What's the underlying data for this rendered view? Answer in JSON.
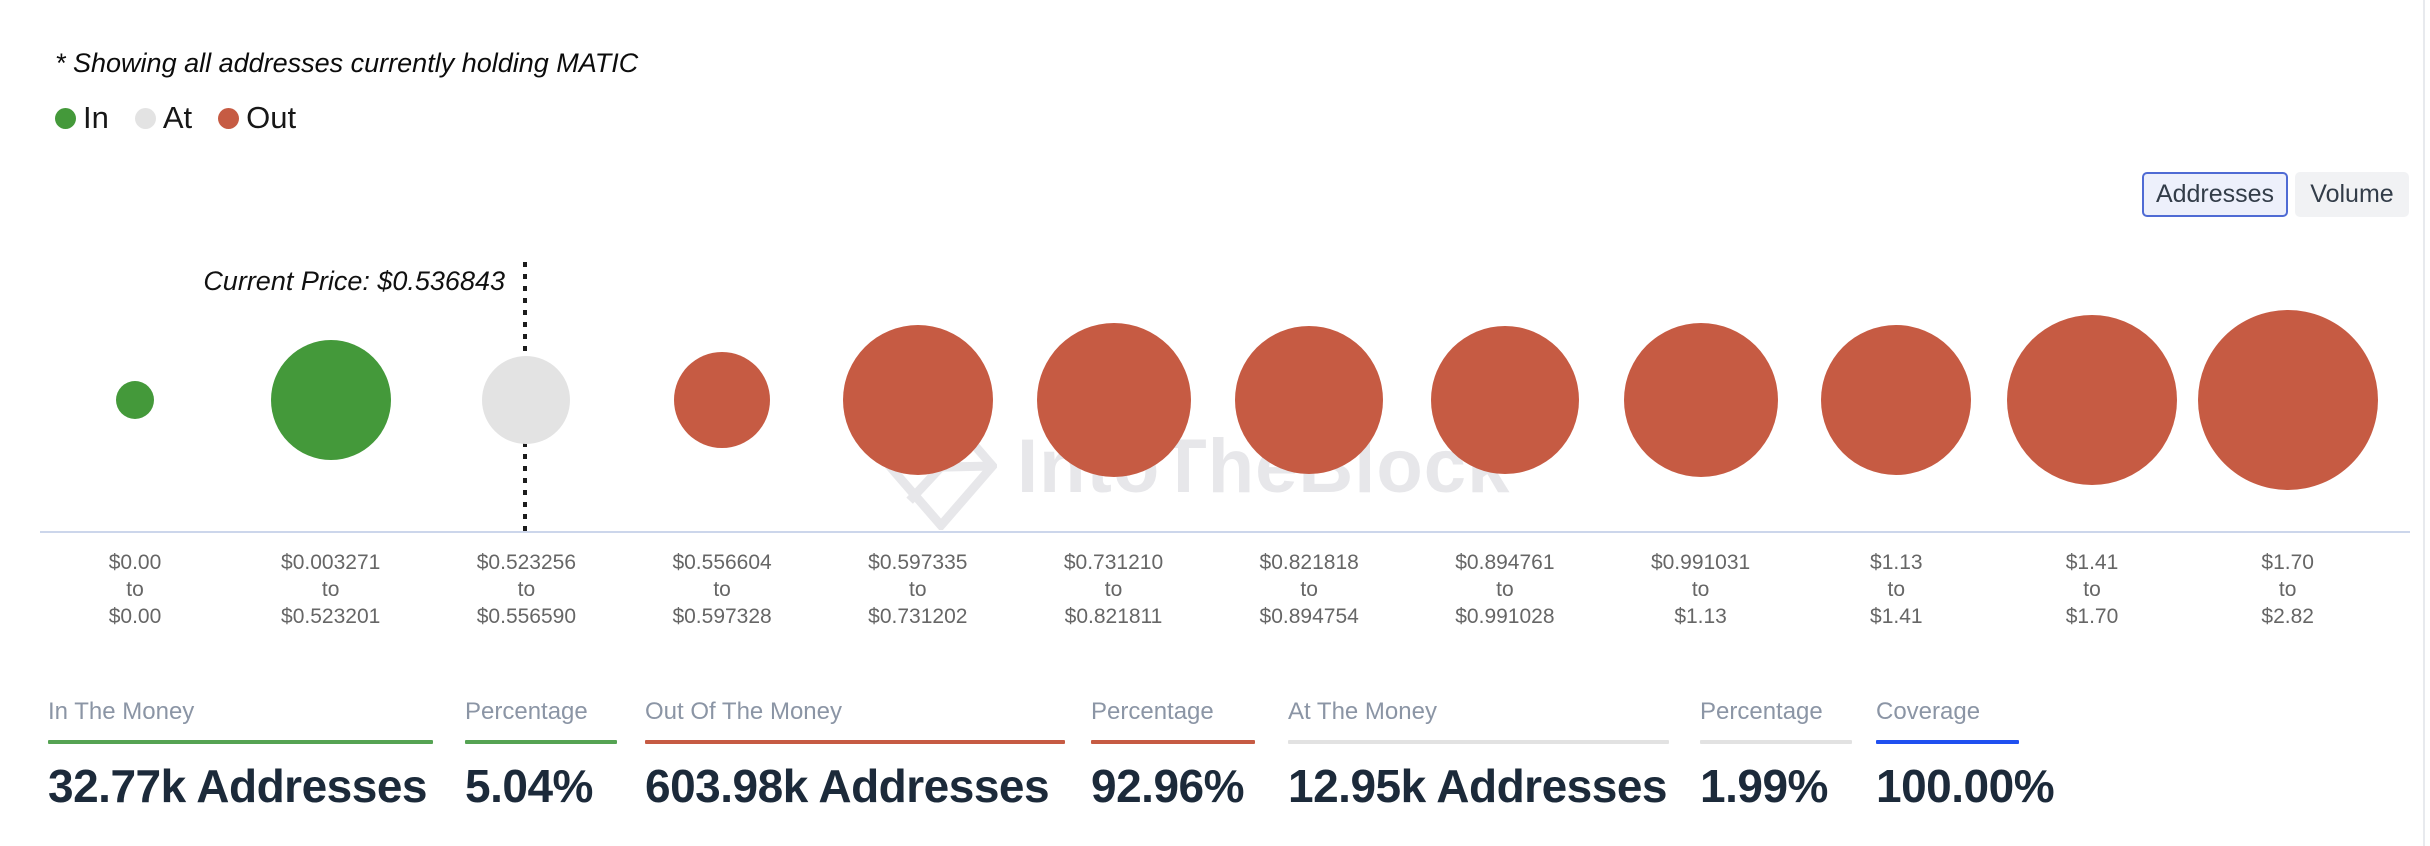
{
  "disclaimer": "* Showing all addresses currently holding MATIC",
  "legend": {
    "items": [
      {
        "label": "In",
        "color_key": "in"
      },
      {
        "label": "At",
        "color_key": "at"
      },
      {
        "label": "Out",
        "color_key": "out"
      }
    ]
  },
  "view_toggle": {
    "addresses": "Addresses",
    "volume": "Volume",
    "selected": "Addresses"
  },
  "watermark": "IntoTheBlock",
  "chart_data": {
    "type": "bubble",
    "current_price_label": "Current Price: $0.536843",
    "current_price": "$0.536843",
    "range_connector": "to",
    "legend_position": "top-left",
    "buckets": [
      {
        "from": "$0.00",
        "to": "$0.00",
        "status": "in",
        "radius": 19
      },
      {
        "from": "$0.003271",
        "to": "$0.523201",
        "status": "in",
        "radius": 60
      },
      {
        "from": "$0.523256",
        "to": "$0.556590",
        "status": "at",
        "radius": 44
      },
      {
        "from": "$0.556604",
        "to": "$0.597328",
        "status": "out",
        "radius": 48
      },
      {
        "from": "$0.597335",
        "to": "$0.731202",
        "status": "out",
        "radius": 75
      },
      {
        "from": "$0.731210",
        "to": "$0.821811",
        "status": "out",
        "radius": 77
      },
      {
        "from": "$0.821818",
        "to": "$0.894754",
        "status": "out",
        "radius": 74
      },
      {
        "from": "$0.894761",
        "to": "$0.991028",
        "status": "out",
        "radius": 74
      },
      {
        "from": "$0.991031",
        "to": "$1.13",
        "status": "out",
        "radius": 77
      },
      {
        "from": "$1.13",
        "to": "$1.41",
        "status": "out",
        "radius": 75
      },
      {
        "from": "$1.41",
        "to": "$1.70",
        "status": "out",
        "radius": 85
      },
      {
        "from": "$1.70",
        "to": "$2.82",
        "status": "out",
        "radius": 90
      }
    ]
  },
  "stats": [
    {
      "label": "In The Money",
      "value": "32.77k Addresses",
      "accent": "green"
    },
    {
      "label": "Percentage",
      "value": "5.04%",
      "accent": "green"
    },
    {
      "label": "Out Of The Money",
      "value": "603.98k Addresses",
      "accent": "red"
    },
    {
      "label": "Percentage",
      "value": "92.96%",
      "accent": "red"
    },
    {
      "label": "At The Money",
      "value": "12.95k Addresses",
      "accent": "gray"
    },
    {
      "label": "Percentage",
      "value": "1.99%",
      "accent": "gray"
    },
    {
      "label": "Coverage",
      "value": "100.00%",
      "accent": "blue"
    }
  ],
  "colors": {
    "in": "#44993a",
    "at": "#e3e3e3",
    "out": "#c65b43",
    "axis_line": "#ccd6eb",
    "accent_green": "#55a353",
    "accent_red": "#c65b43",
    "accent_gray": "#e2e2e2",
    "accent_blue": "#2050f0",
    "selected_button_border": "#4f6bd4"
  }
}
